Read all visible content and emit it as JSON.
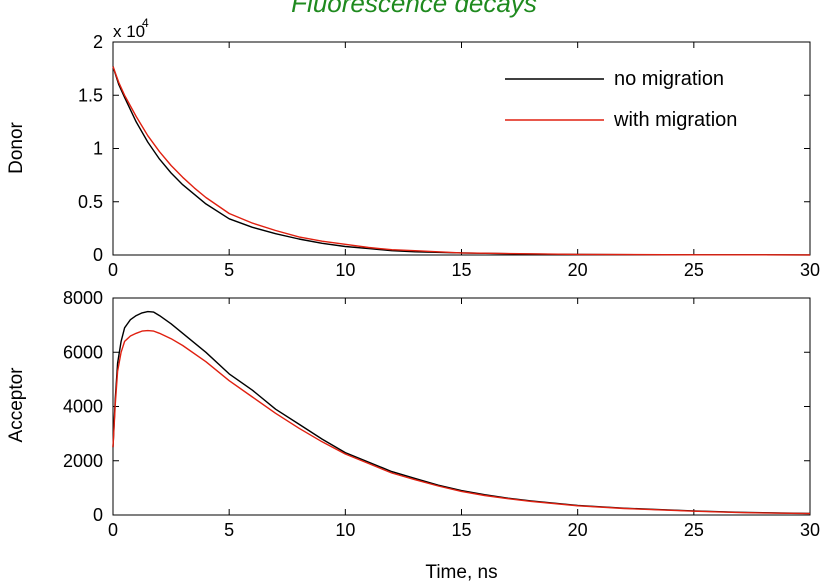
{
  "chart_data": [
    {
      "type": "line",
      "title": "Fluorescence decays",
      "ylabel": "Donor",
      "xlabel": "",
      "y_scale_note": "x 10",
      "y_scale_exponent": "4",
      "xlim": [
        0,
        30
      ],
      "ylim": [
        0,
        2
      ],
      "x_ticks": [
        0,
        5,
        10,
        15,
        20,
        25,
        30
      ],
      "y_ticks": [
        0,
        0.5,
        1,
        1.5,
        2
      ],
      "y_tick_labels": [
        "0",
        "0.5",
        "1",
        "1.5",
        "2"
      ],
      "legend_position": "top-right",
      "series": [
        {
          "name": "no migration",
          "color": "#000000",
          "x": [
            0,
            0.25,
            0.5,
            1,
            1.5,
            2,
            2.5,
            3,
            3.5,
            4,
            5,
            6,
            7,
            8,
            9,
            10,
            11,
            12,
            13,
            15,
            17.5,
            20,
            25,
            30
          ],
          "y": [
            1.77,
            1.6,
            1.48,
            1.25,
            1.06,
            0.9,
            0.77,
            0.66,
            0.57,
            0.48,
            0.34,
            0.26,
            0.2,
            0.15,
            0.11,
            0.08,
            0.06,
            0.04,
            0.03,
            0.02,
            0.01,
            0.005,
            0.002,
            0.001
          ]
        },
        {
          "name": "with migration",
          "color": "#e02010",
          "x": [
            0,
            0.25,
            0.5,
            1,
            1.5,
            2,
            2.5,
            3,
            3.5,
            4,
            5,
            6,
            7,
            8,
            9,
            10,
            11,
            12,
            13,
            15,
            17.5,
            20,
            25,
            30
          ],
          "y": [
            1.77,
            1.62,
            1.5,
            1.3,
            1.12,
            0.97,
            0.84,
            0.73,
            0.63,
            0.54,
            0.39,
            0.3,
            0.23,
            0.17,
            0.13,
            0.1,
            0.07,
            0.05,
            0.04,
            0.02,
            0.012,
            0.006,
            0.002,
            0.001
          ]
        }
      ]
    },
    {
      "type": "line",
      "title": "",
      "ylabel": "Acceptor",
      "xlabel": "Time, ns",
      "xlim": [
        0,
        30
      ],
      "ylim": [
        0,
        8000
      ],
      "x_ticks": [
        0,
        5,
        10,
        15,
        20,
        25,
        30
      ],
      "y_ticks": [
        0,
        2000,
        4000,
        6000,
        8000
      ],
      "y_tick_labels": [
        "0",
        "2000",
        "4000",
        "6000",
        "8000"
      ],
      "series": [
        {
          "name": "no migration",
          "color": "#000000",
          "x": [
            0,
            0.1,
            0.2,
            0.35,
            0.5,
            0.75,
            1,
            1.25,
            1.5,
            1.75,
            2,
            2.5,
            3,
            4,
            5,
            6,
            7,
            8,
            9,
            10,
            11,
            12,
            13,
            14,
            15,
            16,
            17,
            18,
            20,
            22,
            25,
            27,
            30
          ],
          "y": [
            2500,
            4300,
            5600,
            6400,
            6900,
            7200,
            7350,
            7450,
            7500,
            7480,
            7350,
            7050,
            6700,
            6000,
            5200,
            4600,
            3900,
            3350,
            2800,
            2300,
            1950,
            1600,
            1350,
            1100,
            900,
            750,
            620,
            520,
            350,
            250,
            150,
            100,
            60
          ]
        },
        {
          "name": "with migration",
          "color": "#e02010",
          "x": [
            0,
            0.1,
            0.2,
            0.35,
            0.5,
            0.75,
            1,
            1.25,
            1.5,
            1.75,
            2,
            2.5,
            3,
            4,
            5,
            6,
            7,
            8,
            9,
            10,
            11,
            12,
            13,
            14,
            15,
            16,
            17,
            18,
            20,
            22,
            25,
            27,
            30
          ],
          "y": [
            2500,
            4100,
            5300,
            6000,
            6400,
            6600,
            6700,
            6780,
            6800,
            6780,
            6700,
            6500,
            6250,
            5650,
            4950,
            4350,
            3750,
            3200,
            2700,
            2250,
            1900,
            1550,
            1300,
            1070,
            870,
            720,
            600,
            500,
            340,
            240,
            140,
            90,
            50
          ]
        }
      ]
    }
  ]
}
